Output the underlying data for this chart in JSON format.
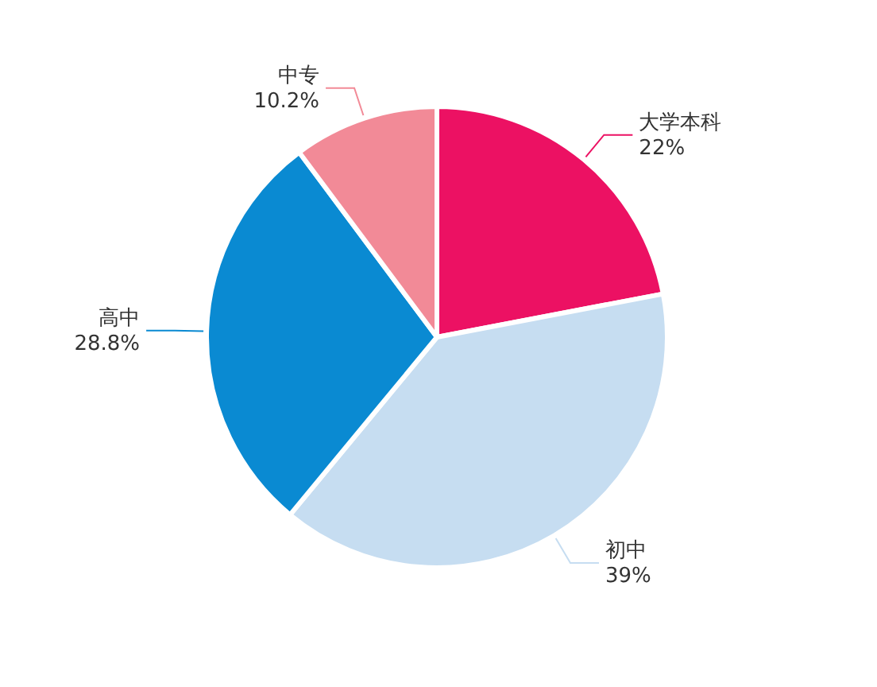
{
  "chart_data": {
    "type": "pie",
    "categories": [
      "大学本科",
      "初中",
      "高中",
      "中专"
    ],
    "values": [
      22,
      39,
      28.8,
      10.2
    ],
    "colors": [
      "#ec1163",
      "#c6ddf1",
      "#0a8ad2",
      "#f28a97"
    ],
    "value_labels": [
      "22%",
      "39%",
      "28.8%",
      "10.2%"
    ]
  }
}
